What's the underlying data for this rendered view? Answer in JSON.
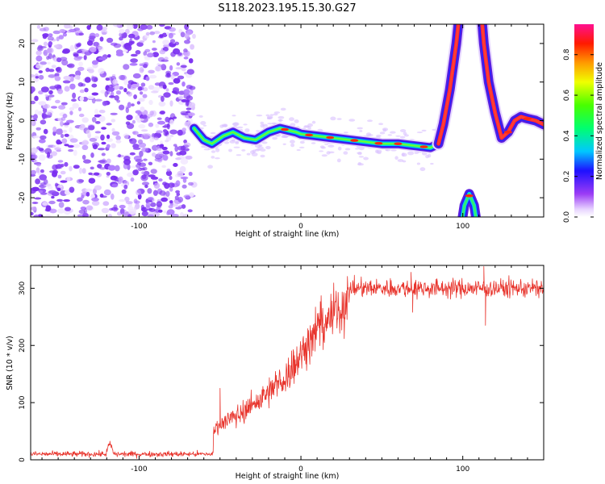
{
  "title": "S118.2023.195.15.30.G27",
  "chart_data": [
    {
      "type": "heatmap",
      "xlabel": "Height of straight line (km)",
      "ylabel": "Frequency (Hz)",
      "xlim": [
        -167,
        150
      ],
      "ylim": [
        -25,
        25
      ],
      "xticks": [
        -100,
        0,
        100
      ],
      "yticks": [
        -20,
        -10,
        0,
        10,
        20
      ],
      "colorbar": {
        "label": "Normalized spectral amplitude",
        "range": [
          0,
          0.95
        ],
        "ticks": [
          0,
          0.2,
          0.4,
          0.6,
          0.8
        ],
        "tick_labels": [
          "0.0",
          "0.2",
          "0.4",
          "0.6",
          "0.8"
        ]
      },
      "noise_region_x": [
        -167,
        -66
      ],
      "main_track": {
        "x": [
          -66,
          -60,
          -55,
          -48,
          -42,
          -35,
          -28,
          -20,
          -13,
          -8,
          -3,
          0,
          10,
          20,
          30,
          40,
          50,
          60,
          70,
          80,
          85
        ],
        "y": [
          -2,
          -5,
          -6,
          -4,
          -3,
          -4.5,
          -5,
          -3,
          -2,
          -2.5,
          -3,
          -3.5,
          -4,
          -4.5,
          -5,
          -5.5,
          -6,
          -6,
          -6.5,
          -7,
          -6
        ]
      },
      "upper_lobe": {
        "x": [
          85,
          88,
          92,
          96,
          99,
          101,
          104,
          108,
          111,
          113,
          116,
          120,
          124,
          128,
          132,
          136,
          140,
          145,
          150
        ],
        "y": [
          -6,
          -1,
          8,
          20,
          32,
          32,
          32,
          32,
          30,
          20,
          10,
          2,
          -4.5,
          -3,
          0,
          1,
          0.5,
          0,
          -1
        ]
      },
      "lower_arch": {
        "x": [
          98,
          101,
          104,
          107,
          110
        ],
        "y": [
          -30,
          -22,
          -19,
          -22,
          -30
        ]
      }
    },
    {
      "type": "line",
      "xlabel": "Height of straight line (km)",
      "ylabel": "SNR (10 * v/v)",
      "xlim": [
        -167,
        150
      ],
      "ylim": [
        0,
        340
      ],
      "xticks": [
        -100,
        0,
        100
      ],
      "yticks": [
        0,
        100,
        200,
        300
      ],
      "color": "#e8342c",
      "baseline_noise": {
        "x": [
          -167,
          -54
        ],
        "mean": 10,
        "spread": 4,
        "spike": {
          "x": -118,
          "y": 35
        }
      },
      "rising_segment": {
        "x": [
          -54,
          -50,
          -40,
          -30,
          -20,
          -10,
          0,
          10,
          20,
          30
        ],
        "y": [
          55,
          65,
          80,
          100,
          120,
          150,
          190,
          235,
          265,
          290
        ]
      },
      "plateau": {
        "x": [
          30,
          150
        ],
        "mean": 300,
        "spread": 8
      },
      "notable_spikes": [
        {
          "x": -50,
          "y": 125
        },
        {
          "x": 68,
          "y": 328
        },
        {
          "x": 113,
          "y": 338
        },
        {
          "x": 114,
          "y": 235
        },
        {
          "x": 69,
          "y": 258
        }
      ]
    }
  ]
}
